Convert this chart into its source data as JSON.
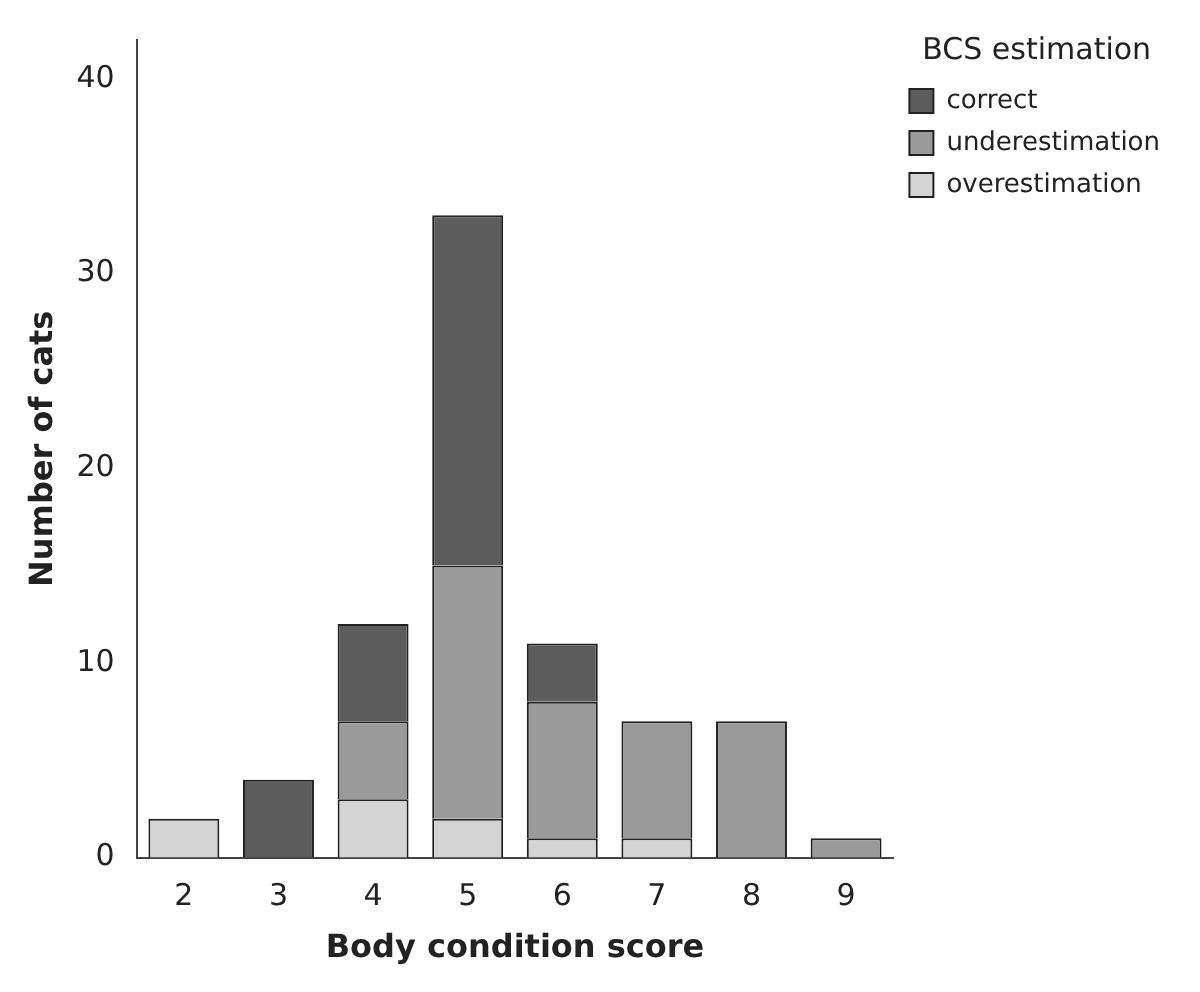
{
  "chart_data": {
    "type": "bar",
    "stacked": true,
    "xlabel": "Body condition score",
    "ylabel": "Number of cats",
    "legend_title": "BCS estimation",
    "legend": "top right",
    "grid": false,
    "categories": [
      "2",
      "3",
      "4",
      "5",
      "6",
      "7",
      "8",
      "9"
    ],
    "ylim": [
      0,
      42
    ],
    "yticks": [
      0,
      10,
      20,
      30,
      40
    ],
    "series": [
      {
        "name": "overestimation",
        "color": "#d4d4d4",
        "values": [
          2,
          null,
          3,
          2,
          1,
          1,
          null,
          null
        ]
      },
      {
        "name": "underestimation",
        "color": "#9a9a9a",
        "values": [
          null,
          null,
          4,
          13,
          7,
          6,
          7,
          1
        ]
      },
      {
        "name": "correct",
        "color": "#5c5c5c",
        "values": [
          null,
          4,
          5,
          18,
          3,
          null,
          null,
          null
        ]
      }
    ]
  }
}
